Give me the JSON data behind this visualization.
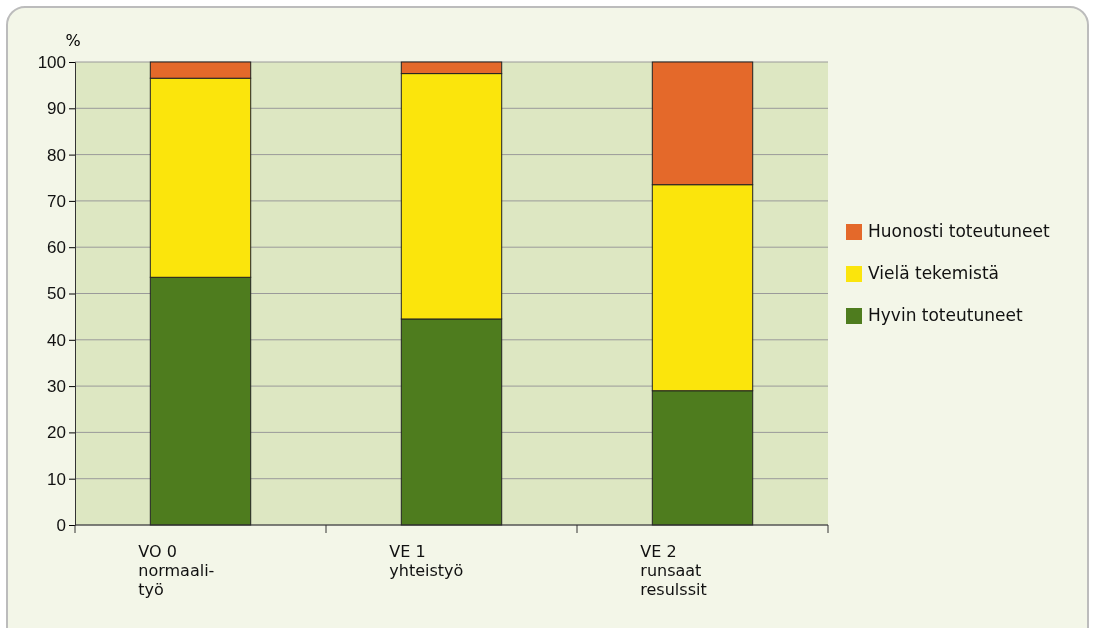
{
  "chart_data": {
    "type": "bar",
    "stacked": true,
    "ylabel": "%",
    "categories": [
      "VO 0\nnormaali-\ntyö",
      "VE 1\nyhteistyö",
      "VE 2\nrunsaat\nresulssit"
    ],
    "series": [
      {
        "name": "Hyvin toteutuneet",
        "color": "#4e7c1e",
        "values": [
          53.5,
          44.5,
          29
        ]
      },
      {
        "name": "Vielä tekemistä",
        "color": "#fbe50c",
        "values": [
          43,
          53,
          44.5
        ]
      },
      {
        "name": "Huonosti toteutuneet",
        "color": "#e4692a",
        "values": [
          3.5,
          2.5,
          26.5
        ]
      }
    ],
    "ylim": [
      0,
      100
    ],
    "yticks": [
      0,
      10,
      20,
      30,
      40,
      50,
      60,
      70,
      80,
      90,
      100
    ],
    "grid": "y",
    "legend": "right"
  }
}
